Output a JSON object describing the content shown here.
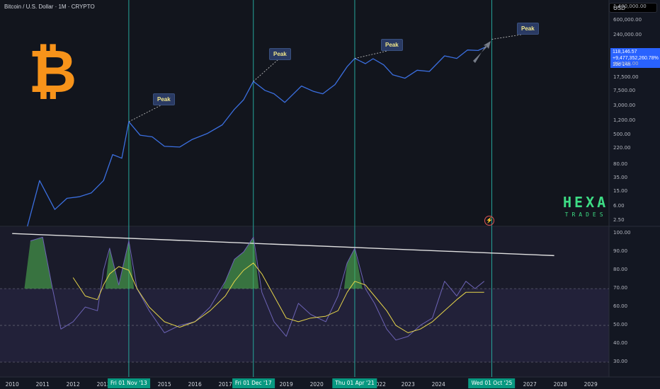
{
  "header": {
    "title": "Bitcoin / U.S. Dollar · 1M · CRYPTO",
    "currency": "USD"
  },
  "price_tag": {
    "price": "118,146.57",
    "change": "+9,477,352,260.78%",
    "countdown": "19d 14h"
  },
  "logo": {
    "symbol": "₿",
    "brand_big": "HEXA",
    "brand_small": "TRADES"
  },
  "peaks": [
    "Peak",
    "Peak",
    "Peak",
    "Peak"
  ],
  "x_axis": {
    "years": [
      "2010",
      "2011",
      "2012",
      "2013",
      "2015",
      "2016",
      "2017",
      "2019",
      "2020",
      "2022",
      "2023",
      "2024",
      "2027",
      "2028",
      "2029"
    ],
    "highlights": [
      "Fri 01 Nov '13",
      "Fri 01 Dec '17",
      "Thu 01 Apr '21",
      "Wed 01 Oct '25"
    ]
  },
  "price_axis": [
    "1,400,000.00",
    "600,000.00",
    "240,000.00",
    "40,000.00",
    "17,500.00",
    "7,500.00",
    "3,000.00",
    "1,200.00",
    "500.00",
    "220.00",
    "80.00",
    "35.00",
    "15.00",
    "6.00",
    "2.50"
  ],
  "rsi_axis": [
    "100.00",
    "90.00",
    "80.00",
    "70.00",
    "60.00",
    "50.00",
    "40.00",
    "30.00"
  ],
  "colors": {
    "background": "#131722",
    "price_line": "#3b6fe0",
    "cycle_line": "#26a69a",
    "rsi_line": "#6c63b5",
    "rsi_ma": "#e6d54a",
    "trendline": "#e0e0e0",
    "overbought_fill": "#4caf50",
    "bitcoin": "#f7931a",
    "brand": "#3ddc84"
  },
  "chart_data": [
    {
      "type": "line",
      "title": "Bitcoin / U.S. Dollar · 1M · CRYPTO",
      "y_scale": "log",
      "ylim": [
        2.5,
        1400000
      ],
      "x": [
        2010.5,
        2010.9,
        2011.4,
        2011.8,
        2012.2,
        2012.6,
        2013.0,
        2013.3,
        2013.6,
        2013.83,
        2014.2,
        2014.6,
        2015.0,
        2015.5,
        2015.9,
        2016.4,
        2016.9,
        2017.3,
        2017.6,
        2017.92,
        2018.3,
        2018.6,
        2018.95,
        2019.5,
        2019.9,
        2020.2,
        2020.6,
        2021.0,
        2021.25,
        2021.6,
        2021.85,
        2022.2,
        2022.5,
        2022.9,
        2023.3,
        2023.7,
        2024.2,
        2024.6,
        2024.95,
        2025.3,
        2025.55
      ],
      "series": [
        {
          "values": [
            0.07,
            30,
            5,
            10,
            11,
            14,
            30,
            150,
            120,
            1150,
            500,
            450,
            250,
            240,
            380,
            550,
            950,
            2500,
            4500,
            14000,
            8000,
            6500,
            3800,
            10500,
            7500,
            6500,
            11500,
            35000,
            58000,
            42000,
            57000,
            39000,
            21000,
            17000,
            28000,
            26000,
            68000,
            58000,
            98000,
            95000,
            118146
          ]
        }
      ],
      "annotations": [
        "Peak",
        "Peak",
        "Peak",
        "Peak"
      ]
    },
    {
      "type": "line",
      "ylim": [
        25,
        102
      ],
      "x": [
        2010.0,
        2010.3,
        2010.6,
        2011.0,
        2011.3,
        2011.6,
        2012.0,
        2012.4,
        2012.8,
        2013.0,
        2013.2,
        2013.5,
        2013.83,
        2014.1,
        2014.5,
        2015.0,
        2015.5,
        2016.0,
        2016.5,
        2017.0,
        2017.3,
        2017.6,
        2017.92,
        2018.2,
        2018.6,
        2019.0,
        2019.4,
        2019.8,
        2020.3,
        2020.7,
        2021.0,
        2021.25,
        2021.6,
        2021.9,
        2022.3,
        2022.6,
        2023.0,
        2023.4,
        2023.8,
        2024.2,
        2024.6,
        2024.9,
        2025.2,
        2025.5
      ],
      "series": [
        {
          "values": [
            null,
            null,
            96,
            98,
            72,
            48,
            52,
            60,
            58,
            80,
            92,
            72,
            96,
            70,
            58,
            46,
            50,
            52,
            60,
            74,
            86,
            90,
            98,
            68,
            52,
            44,
            62,
            56,
            52,
            66,
            84,
            92,
            70,
            62,
            48,
            42,
            44,
            50,
            54,
            74,
            66,
            74,
            70,
            74
          ]
        },
        {
          "values": [
            null,
            null,
            null,
            null,
            null,
            null,
            76,
            66,
            64,
            72,
            78,
            82,
            80,
            70,
            60,
            52,
            49,
            52,
            58,
            66,
            74,
            80,
            84,
            78,
            66,
            54,
            52,
            54,
            55,
            58,
            68,
            74,
            72,
            66,
            58,
            50,
            46,
            48,
            52,
            58,
            64,
            68,
            68,
            68
          ]
        }
      ],
      "trendline": {
        "x": [
          2010.0,
          2027.8
        ],
        "y": [
          100,
          88
        ]
      },
      "levels": [
        70,
        50,
        30
      ]
    }
  ]
}
